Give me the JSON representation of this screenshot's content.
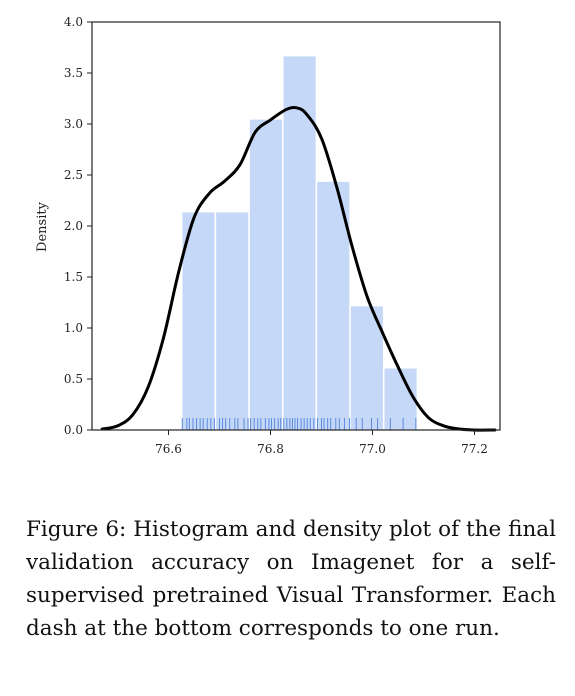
{
  "chart_data": {
    "type": "histogram",
    "ylabel": "Density",
    "xlabel": "",
    "xlim": [
      76.45,
      77.25
    ],
    "ylim": [
      0.0,
      4.0
    ],
    "x_ticks": [
      76.6,
      76.8,
      77.0,
      77.2
    ],
    "x_tick_labels": [
      "76.6",
      "76.8",
      "77.0",
      "77.2"
    ],
    "y_ticks": [
      0.0,
      0.5,
      1.0,
      1.5,
      2.0,
      2.5,
      3.0,
      3.5,
      4.0
    ],
    "y_tick_labels": [
      "0.0",
      "0.5",
      "1.0",
      "1.5",
      "2.0",
      "2.5",
      "3.0",
      "3.5",
      "4.0"
    ],
    "bins": [
      {
        "x0": 76.626,
        "x1": 76.692,
        "density": 2.14
      },
      {
        "x0": 76.692,
        "x1": 76.758,
        "density": 2.14
      },
      {
        "x0": 76.758,
        "x1": 76.824,
        "density": 3.05
      },
      {
        "x0": 76.824,
        "x1": 76.89,
        "density": 3.67
      },
      {
        "x0": 76.89,
        "x1": 76.956,
        "density": 2.44
      },
      {
        "x0": 76.956,
        "x1": 77.022,
        "density": 1.22
      },
      {
        "x0": 77.022,
        "x1": 77.088,
        "density": 0.61
      }
    ],
    "density_curve": {
      "x": [
        76.47,
        76.5,
        76.53,
        76.56,
        76.59,
        76.62,
        76.65,
        76.68,
        76.71,
        76.74,
        76.77,
        76.8,
        76.83,
        76.85,
        76.87,
        76.9,
        76.93,
        76.96,
        76.99,
        77.02,
        77.05,
        77.08,
        77.11,
        77.14,
        77.17,
        77.2,
        77.24
      ],
      "y": [
        0.01,
        0.04,
        0.15,
        0.42,
        0.9,
        1.55,
        2.08,
        2.32,
        2.44,
        2.6,
        2.92,
        3.04,
        3.14,
        3.16,
        3.1,
        2.86,
        2.38,
        1.8,
        1.3,
        0.95,
        0.62,
        0.32,
        0.12,
        0.04,
        0.01,
        0.0,
        0.0
      ]
    },
    "rug": [
      76.627,
      76.636,
      76.641,
      76.648,
      76.655,
      76.662,
      76.668,
      76.676,
      76.683,
      76.69,
      76.7,
      76.706,
      76.712,
      76.72,
      76.73,
      76.736,
      76.748,
      76.756,
      76.761,
      76.768,
      76.775,
      76.781,
      76.79,
      76.797,
      76.802,
      76.808,
      76.815,
      76.82,
      76.826,
      76.832,
      76.838,
      76.843,
      76.848,
      76.853,
      76.86,
      76.866,
      76.872,
      76.878,
      76.885,
      76.892,
      76.9,
      76.905,
      76.912,
      76.918,
      76.928,
      76.935,
      76.945,
      76.955,
      76.968,
      76.98,
      76.998,
      77.01,
      77.035,
      77.06,
      77.085
    ],
    "colors": {
      "bar_fill": "#c5d8f7",
      "bar_edge": "#ffffff",
      "curve": "#000000",
      "rug": "#5b8be0",
      "axis": "#222222"
    }
  },
  "caption": {
    "text": "Figure 6: Histogram and density plot of the final validation accuracy on Imagenet for a self-supervised pretrained Visual Transformer. Each dash at the bottom corresponds to one run."
  }
}
